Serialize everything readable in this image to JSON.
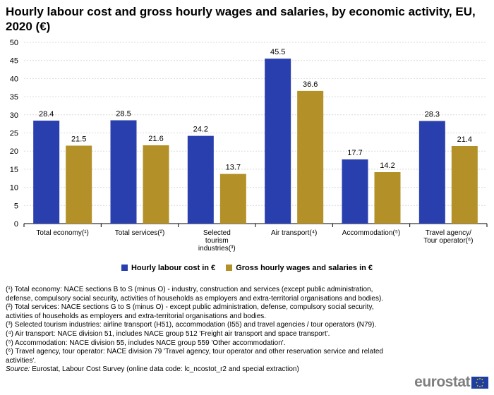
{
  "title": "Hourly labour cost and gross hourly wages and salaries, by economic activity, EU, 2020 (€)",
  "chart_data": {
    "type": "bar",
    "categories": [
      [
        "Total economy(¹)"
      ],
      [
        "Total services(²)"
      ],
      [
        "Selected",
        "tourism",
        "industries(³)"
      ],
      [
        "Air transport(⁴)"
      ],
      [
        "Accommodation(⁵)"
      ],
      [
        "Travel agency/",
        "Tour operator(⁶)"
      ]
    ],
    "series": [
      {
        "name": "Hourly labour cost in €",
        "color": "#2a3fae",
        "values": [
          28.4,
          28.5,
          24.2,
          45.5,
          17.7,
          28.3
        ]
      },
      {
        "name": "Gross hourly wages and salaries in €",
        "color": "#b39128",
        "values": [
          21.5,
          21.6,
          13.7,
          36.6,
          14.2,
          21.4
        ]
      }
    ],
    "ylim": [
      0,
      50
    ],
    "yticks": [
      0,
      5,
      10,
      15,
      20,
      25,
      30,
      35,
      40,
      45,
      50
    ],
    "grid": true,
    "legend": "bottom"
  },
  "notes": [
    "(¹) Total economy: NACE sections B to S (minus O) - industry, construction and services (except public administration, defense, compulsory social security, activities of households as employers and extra-territorial organisations and bodies).",
    "(²) Total services: NACE sections G to S (minus O) - except public administration, defense, compulsory social security, activities of households as employers and extra-territorial organisations and bodies.",
    "(³) Selected tourism industries: airline transport (H51), accommodation (I55) and travel agencies / tour operators (N79).",
    "(⁴) Air transport: NACE division 51, includes NACE group 512 'Freight air transport and space transport'.",
    "(⁵) Accommodation: NACE division 55, includes NACE group 559 'Other accommodation'.",
    "(⁶) Travel agency, tour operator: NACE division 79 'Travel agency, tour operator and other reservation service and related activities'."
  ],
  "source_label": "Source:",
  "source_text": "Eurostat, Labour Cost Survey (online data code: lc_ncostot_r2 and special extraction)",
  "logo_text": "eurostat"
}
